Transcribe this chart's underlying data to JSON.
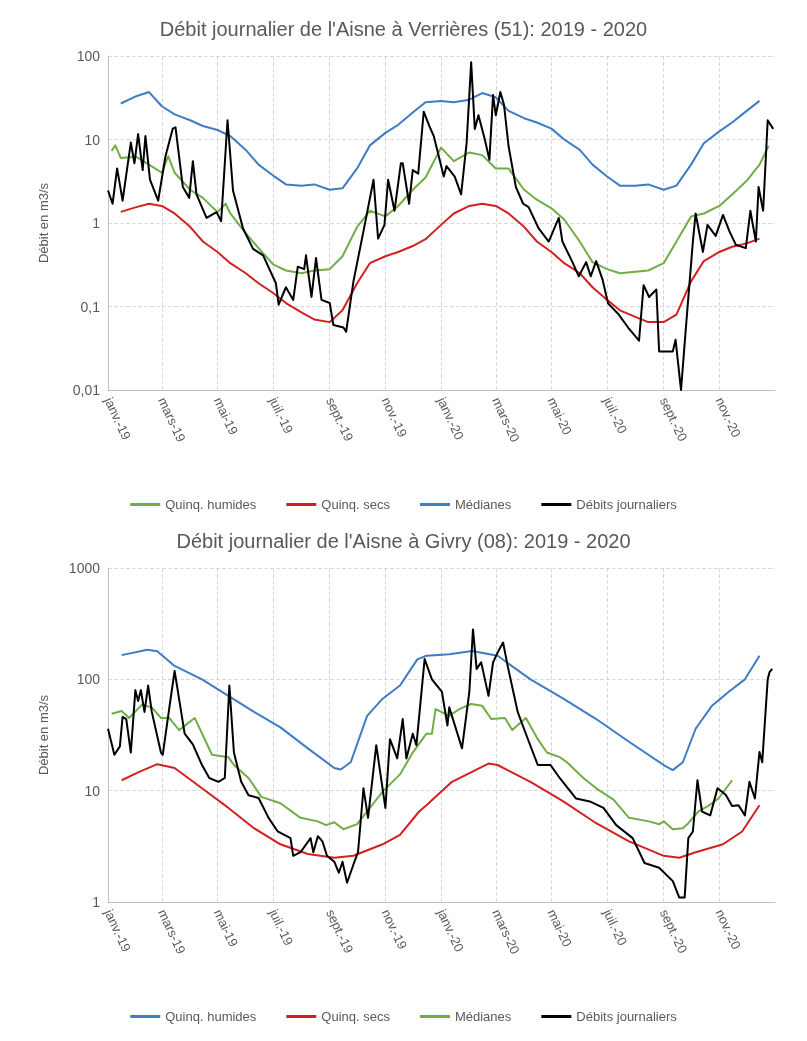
{
  "chart_data": [
    {
      "type": "line",
      "title": "Débit journalier de l'Aisne à Verrières (51): 2019 - 2020",
      "ylabel": "Débit en m3/s",
      "log": "y",
      "grid": true,
      "legend": "bottom",
      "marker": "none",
      "xlim": [
        "2019-01-01",
        "2021-01-01"
      ],
      "xticks": [
        {
          "value": "2019-01-01",
          "label": "janv.-19"
        },
        {
          "value": "2019-03-01",
          "label": "mars-19"
        },
        {
          "value": "2019-05-01",
          "label": "mai-19"
        },
        {
          "value": "2019-07-01",
          "label": "juil.-19"
        },
        {
          "value": "2019-09-01",
          "label": "sept.-19"
        },
        {
          "value": "2019-11-01",
          "label": "nov.-19"
        },
        {
          "value": "2020-01-01",
          "label": "janv.-20"
        },
        {
          "value": "2020-03-01",
          "label": "mars-20"
        },
        {
          "value": "2020-05-01",
          "label": "mai-20"
        },
        {
          "value": "2020-07-01",
          "label": "juil.-20"
        },
        {
          "value": "2020-09-01",
          "label": "sept.-20"
        },
        {
          "value": "2020-11-01",
          "label": "nov.-20"
        }
      ],
      "ylim": [
        0.01,
        100
      ],
      "yticks": [
        {
          "value": 0.01,
          "label": "0,01"
        },
        {
          "value": 0.1,
          "label": "0,1"
        },
        1,
        10,
        100
      ],
      "series": [
        {
          "name": "Quinq. humides",
          "color": "#70ad47",
          "x": [
            "2019-01-05",
            "2019-01-09",
            "2019-01-15",
            "2019-02-01",
            "2019-02-15",
            "2019-03-01",
            "2019-03-08",
            "2019-03-15",
            "2019-04-01",
            "2019-04-15",
            "2019-05-01",
            "2019-05-10",
            "2019-05-15",
            "2019-06-01",
            "2019-06-15",
            "2019-07-01",
            "2019-07-15",
            "2019-08-01",
            "2019-08-15",
            "2019-09-01",
            "2019-09-15",
            "2019-10-01",
            "2019-10-15",
            "2019-11-01",
            "2019-11-15",
            "2019-12-01",
            "2019-12-15",
            "2020-01-01",
            "2020-01-15",
            "2020-02-01",
            "2020-02-15",
            "2020-03-01",
            "2020-03-15",
            "2020-04-01",
            "2020-04-15",
            "2020-05-01",
            "2020-05-15",
            "2020-06-01",
            "2020-06-15",
            "2020-07-01",
            "2020-07-15",
            "2020-08-01",
            "2020-08-15",
            "2020-09-01",
            "2020-09-15",
            "2020-10-01",
            "2020-10-15",
            "2020-11-01",
            "2020-11-15",
            "2020-12-01",
            "2020-12-15",
            "2020-12-25"
          ],
          "values": [
            7.3,
            8.5,
            6,
            6.2,
            5,
            4,
            6.3,
            4,
            2.5,
            2,
            1.35,
            1.7,
            1.3,
            0.75,
            0.5,
            0.32,
            0.27,
            0.25,
            0.27,
            0.28,
            0.4,
            0.9,
            1.4,
            1.2,
            1.6,
            2.5,
            3.5,
            8,
            5.5,
            7,
            6.5,
            4.5,
            4.5,
            2.5,
            1.9,
            1.5,
            1.1,
            0.6,
            0.34,
            0.28,
            0.25,
            0.26,
            0.27,
            0.33,
            0.6,
            1.2,
            1.3,
            1.6,
            2.2,
            3.2,
            5,
            8.4
          ]
        },
        {
          "name": "Quinq. secs",
          "color": "#d42020",
          "x": [
            "2019-01-15",
            "2019-02-01",
            "2019-02-15",
            "2019-03-01",
            "2019-03-15",
            "2019-04-01",
            "2019-04-15",
            "2019-05-01",
            "2019-05-15",
            "2019-06-01",
            "2019-06-15",
            "2019-07-01",
            "2019-07-15",
            "2019-08-01",
            "2019-08-15",
            "2019-09-01",
            "2019-09-15",
            "2019-10-01",
            "2019-10-15",
            "2019-11-01",
            "2019-11-15",
            "2019-12-01",
            "2019-12-15",
            "2020-01-01",
            "2020-01-15",
            "2020-02-01",
            "2020-02-15",
            "2020-03-01",
            "2020-03-15",
            "2020-04-01",
            "2020-04-15",
            "2020-05-01",
            "2020-05-15",
            "2020-06-01",
            "2020-06-15",
            "2020-07-01",
            "2020-07-15",
            "2020-08-01",
            "2020-08-15",
            "2020-09-01",
            "2020-09-15",
            "2020-10-01",
            "2020-10-15",
            "2020-11-01",
            "2020-11-15",
            "2020-12-01",
            "2020-12-15"
          ],
          "values": [
            1.36,
            1.55,
            1.7,
            1.6,
            1.3,
            0.9,
            0.6,
            0.45,
            0.33,
            0.25,
            0.19,
            0.145,
            0.11,
            0.085,
            0.07,
            0.065,
            0.09,
            0.19,
            0.33,
            0.4,
            0.45,
            0.53,
            0.64,
            0.95,
            1.3,
            1.6,
            1.7,
            1.6,
            1.3,
            0.9,
            0.6,
            0.45,
            0.33,
            0.25,
            0.17,
            0.12,
            0.09,
            0.075,
            0.065,
            0.065,
            0.08,
            0.2,
            0.35,
            0.45,
            0.52,
            0.57,
            0.65
          ]
        },
        {
          "name": "Médianes",
          "color": "#3e7cc4",
          "x": [
            "2019-01-15",
            "2019-02-01",
            "2019-02-15",
            "2019-03-01",
            "2019-03-15",
            "2019-04-01",
            "2019-04-15",
            "2019-05-01",
            "2019-05-15",
            "2019-06-01",
            "2019-06-15",
            "2019-07-01",
            "2019-07-15",
            "2019-08-01",
            "2019-08-15",
            "2019-09-01",
            "2019-09-15",
            "2019-10-01",
            "2019-10-15",
            "2019-11-01",
            "2019-11-15",
            "2019-12-01",
            "2019-12-15",
            "2020-01-01",
            "2020-01-15",
            "2020-02-01",
            "2020-02-15",
            "2020-03-01",
            "2020-03-15",
            "2020-04-01",
            "2020-04-15",
            "2020-05-01",
            "2020-05-15",
            "2020-06-01",
            "2020-06-15",
            "2020-07-01",
            "2020-07-15",
            "2020-08-01",
            "2020-08-15",
            "2020-09-01",
            "2020-09-15",
            "2020-10-01",
            "2020-10-15",
            "2020-11-01",
            "2020-11-15",
            "2020-12-01",
            "2020-12-15"
          ],
          "values": [
            27,
            33,
            37,
            25,
            20,
            17,
            14.5,
            13,
            11,
            7.5,
            5,
            3.7,
            2.9,
            2.8,
            2.9,
            2.5,
            2.6,
            4.5,
            8.5,
            12,
            15,
            21,
            28,
            29,
            28,
            30,
            36,
            32,
            22,
            18,
            16,
            13.5,
            10,
            7.5,
            5,
            3.6,
            2.8,
            2.8,
            2.9,
            2.5,
            2.8,
            5,
            9,
            12.5,
            16,
            22,
            29
          ]
        },
        {
          "name": "Débits journaliers",
          "color": "#000000",
          "x": [
            "2019-01-01",
            "2019-01-06",
            "2019-01-11",
            "2019-01-17",
            "2019-01-26",
            "2019-01-30",
            "2019-02-03",
            "2019-02-08",
            "2019-02-11",
            "2019-02-16",
            "2019-02-25",
            "2019-03-05",
            "2019-03-13",
            "2019-03-16",
            "2019-03-24",
            "2019-03-31",
            "2019-04-04",
            "2019-04-08",
            "2019-04-19",
            "2019-04-30",
            "2019-05-05",
            "2019-05-12",
            "2019-05-18",
            "2019-05-29",
            "2019-06-09",
            "2019-06-20",
            "2019-07-04",
            "2019-07-07",
            "2019-07-15",
            "2019-07-23",
            "2019-07-28",
            "2019-08-04",
            "2019-08-06",
            "2019-08-12",
            "2019-08-17",
            "2019-08-23",
            "2019-09-01",
            "2019-09-05",
            "2019-09-16",
            "2019-09-19",
            "2019-09-27",
            "2019-10-08",
            "2019-10-19",
            "2019-10-24",
            "2019-10-31",
            "2019-11-04",
            "2019-11-11",
            "2019-11-18",
            "2019-11-20",
            "2019-11-27",
            "2019-12-01",
            "2019-12-07",
            "2019-12-13",
            "2019-12-19",
            "2019-12-24",
            "2020-01-04",
            "2020-01-07",
            "2020-01-16",
            "2020-01-23",
            "2020-01-29",
            "2020-02-03",
            "2020-02-07",
            "2020-02-11",
            "2020-02-18",
            "2020-02-23",
            "2020-02-27",
            "2020-03-01",
            "2020-03-06",
            "2020-03-10",
            "2020-03-15",
            "2020-03-23",
            "2020-03-31",
            "2020-04-06",
            "2020-04-17",
            "2020-04-28",
            "2020-05-09",
            "2020-05-13",
            "2020-05-24",
            "2020-05-31",
            "2020-06-08",
            "2020-06-13",
            "2020-06-19",
            "2020-06-26",
            "2020-07-02",
            "2020-07-13",
            "2020-07-24",
            "2020-08-05",
            "2020-08-10",
            "2020-08-16",
            "2020-08-24",
            "2020-08-27",
            "2020-09-11",
            "2020-09-14",
            "2020-09-20",
            "2020-09-25",
            "2020-10-03",
            "2020-10-06",
            "2020-10-14",
            "2020-10-19",
            "2020-10-28",
            "2020-11-05",
            "2020-11-12",
            "2020-11-19",
            "2020-11-30",
            "2020-12-05",
            "2020-12-11",
            "2020-12-14",
            "2020-12-19",
            "2020-12-24",
            "2020-12-30"
          ],
          "values": [
            2.45,
            1.7,
            4.5,
            1.85,
            9.2,
            5.2,
            11.6,
            4.3,
            11,
            3.3,
            1.85,
            6.3,
            13.5,
            14,
            2.7,
            2,
            5.5,
            2.2,
            1.15,
            1.35,
            1.05,
            17,
            2.45,
            0.86,
            0.49,
            0.41,
            0.19,
            0.105,
            0.17,
            0.12,
            0.3,
            0.28,
            0.41,
            0.13,
            0.38,
            0.12,
            0.11,
            0.06,
            0.056,
            0.05,
            0.2,
            0.8,
            3.3,
            0.65,
            0.95,
            3.3,
            1.4,
            5.2,
            5.2,
            1.7,
            4.3,
            3.9,
            21.5,
            14.7,
            11,
            3.6,
            4.8,
            3.6,
            2.2,
            9,
            84,
            13.4,
            19.5,
            10,
            5.7,
            34,
            19.5,
            37,
            26,
            8.3,
            2.7,
            1.7,
            1.55,
            0.86,
            0.6,
            1.15,
            0.6,
            0.34,
            0.23,
            0.34,
            0.23,
            0.35,
            0.21,
            0.109,
            0.082,
            0.056,
            0.039,
            0.18,
            0.13,
            0.16,
            0.029,
            0.029,
            0.04,
            0.01,
            0.05,
            0.6,
            1.3,
            0.45,
            0.95,
            0.7,
            1.25,
            0.8,
            0.55,
            0.5,
            1.4,
            0.6,
            2.7,
            1.4,
            17,
            13.4
          ]
        }
      ]
    },
    {
      "type": "line",
      "title": "Débit journalier de l'Aisne à Givry (08): 2019 - 2020",
      "ylabel": "Débit en m3/s",
      "log": "y",
      "grid": true,
      "legend": "bottom",
      "marker": "none",
      "xlim": [
        "2019-01-01",
        "2021-01-01"
      ],
      "xticks": [
        {
          "value": "2019-01-01",
          "label": "janv.-19"
        },
        {
          "value": "2019-03-01",
          "label": "mars-19"
        },
        {
          "value": "2019-05-01",
          "label": "mai-19"
        },
        {
          "value": "2019-07-01",
          "label": "juil.-19"
        },
        {
          "value": "2019-09-01",
          "label": "sept.-19"
        },
        {
          "value": "2019-11-01",
          "label": "nov.-19"
        },
        {
          "value": "2020-01-01",
          "label": "janv.-20"
        },
        {
          "value": "2020-03-01",
          "label": "mars-20"
        },
        {
          "value": "2020-05-01",
          "label": "mai-20"
        },
        {
          "value": "2020-07-01",
          "label": "juil.-20"
        },
        {
          "value": "2020-09-01",
          "label": "sept.-20"
        },
        {
          "value": "2020-11-01",
          "label": "nov.-20"
        }
      ],
      "ylim": [
        1,
        1000
      ],
      "yticks": [
        1,
        10,
        100,
        1000
      ],
      "series": [
        {
          "name": "Quinq. humides",
          "color": "#3e7cc4",
          "x": [
            "2019-01-16",
            "2019-02-13",
            "2019-02-24",
            "2019-03-15",
            "2019-04-14",
            "2019-05-13",
            "2019-06-10",
            "2019-07-09",
            "2019-08-08",
            "2019-09-06",
            "2019-09-13",
            "2019-09-24",
            "2019-10-12",
            "2019-10-29",
            "2019-11-17",
            "2019-12-06",
            "2019-12-16",
            "2020-01-10",
            "2020-02-04",
            "2020-03-03",
            "2020-04-08",
            "2020-05-14",
            "2020-06-19",
            "2020-07-25",
            "2020-09-01",
            "2020-09-11",
            "2020-09-22",
            "2020-10-06",
            "2020-10-24",
            "2020-11-11",
            "2020-11-29",
            "2020-12-15"
          ],
          "values": [
            165,
            184,
            179,
            132,
            100,
            71,
            51,
            37,
            24,
            16,
            15.5,
            18,
            47,
            67,
            88,
            151,
            163,
            168,
            180,
            163,
            100,
            67,
            44,
            27.5,
            17,
            15.3,
            18,
            36,
            58,
            77,
            100,
            163
          ]
        },
        {
          "name": "Quinq. secs",
          "color": "#d42020",
          "x": [
            "2019-01-16",
            "2019-02-03",
            "2019-02-24",
            "2019-03-15",
            "2019-04-14",
            "2019-05-13",
            "2019-06-10",
            "2019-07-09",
            "2019-08-08",
            "2019-09-06",
            "2019-09-27",
            "2019-10-29",
            "2019-11-17",
            "2019-12-08",
            "2019-12-16",
            "2020-01-13",
            "2020-02-22",
            "2020-03-03",
            "2020-04-08",
            "2020-05-14",
            "2020-06-19",
            "2020-07-25",
            "2020-09-01",
            "2020-09-18",
            "2020-10-06",
            "2020-11-05",
            "2020-11-26",
            "2020-12-15"
          ],
          "values": [
            12.4,
            14.6,
            17.3,
            16,
            10.5,
            7,
            4.6,
            3.3,
            2.7,
            2.5,
            2.6,
            3.3,
            4,
            6.5,
            7.4,
            12,
            17.5,
            17,
            12,
            8,
            5.1,
            3.5,
            2.6,
            2.5,
            2.8,
            3.3,
            4.3,
            7.4
          ]
        },
        {
          "name": "Médianes",
          "color": "#70ad47",
          "x": [
            "2019-01-05",
            "2019-01-16",
            "2019-01-24",
            "2019-02-07",
            "2019-02-18",
            "2019-02-28",
            "2019-03-09",
            "2019-03-20",
            "2019-04-06",
            "2019-04-25",
            "2019-05-13",
            "2019-05-19",
            "2019-06-04",
            "2019-06-18",
            "2019-07-09",
            "2019-07-31",
            "2019-08-19",
            "2019-08-28",
            "2019-09-06",
            "2019-09-16",
            "2019-10-01",
            "2019-10-12",
            "2019-10-29",
            "2019-11-17",
            "2019-12-01",
            "2019-12-16",
            "2019-12-22",
            "2019-12-26",
            "2020-01-10",
            "2020-01-21",
            "2020-02-03",
            "2020-02-15",
            "2020-02-25",
            "2020-03-11",
            "2020-03-19",
            "2020-04-03",
            "2020-04-16",
            "2020-04-26",
            "2020-05-10",
            "2020-05-18",
            "2020-06-05",
            "2020-06-19",
            "2020-07-08",
            "2020-07-25",
            "2020-08-16",
            "2020-08-27",
            "2020-09-01",
            "2020-09-11",
            "2020-09-22",
            "2020-09-28",
            "2020-10-09",
            "2020-10-20",
            "2020-10-31",
            "2020-11-15"
          ],
          "values": [
            49,
            52,
            45,
            59,
            56,
            45,
            45,
            35,
            45,
            21,
            20,
            17,
            13,
            8.8,
            7.7,
            5.7,
            5.3,
            4.9,
            5.2,
            4.5,
            5,
            6.5,
            9.8,
            14,
            22,
            32.5,
            32.5,
            54,
            47,
            54,
            60,
            58,
            44,
            45,
            35,
            45,
            29,
            22,
            20,
            18,
            13,
            10.5,
            8.3,
            5.7,
            5.3,
            5,
            5.3,
            4.5,
            4.6,
            5.1,
            6.5,
            7.3,
            8.5,
            12.4
          ]
        },
        {
          "name": "Débits journaliers",
          "color": "#000000",
          "x": [
            "2019-01-01",
            "2019-01-08",
            "2019-01-14",
            "2019-01-17",
            "2019-01-21",
            "2019-01-26",
            "2019-01-31",
            "2019-02-03",
            "2019-02-06",
            "2019-02-10",
            "2019-02-14",
            "2019-02-18",
            "2019-02-28",
            "2019-03-02",
            "2019-03-09",
            "2019-03-15",
            "2019-03-26",
            "2019-04-04",
            "2019-04-14",
            "2019-04-22",
            "2019-05-02",
            "2019-05-09",
            "2019-05-14",
            "2019-05-19",
            "2019-05-27",
            "2019-06-04",
            "2019-06-15",
            "2019-06-26",
            "2019-07-06",
            "2019-07-20",
            "2019-07-23",
            "2019-07-31",
            "2019-08-11",
            "2019-08-14",
            "2019-08-19",
            "2019-08-24",
            "2019-08-29",
            "2019-09-06",
            "2019-09-11",
            "2019-09-15",
            "2019-09-20",
            "2019-09-27",
            "2019-10-02",
            "2019-10-08",
            "2019-10-13",
            "2019-10-22",
            "2019-11-01",
            "2019-11-06",
            "2019-11-14",
            "2019-11-20",
            "2019-11-24",
            "2019-12-01",
            "2019-12-05",
            "2019-12-14",
            "2019-12-22",
            "2020-01-02",
            "2020-01-08",
            "2020-01-10",
            "2020-01-24",
            "2020-02-01",
            "2020-02-05",
            "2020-02-09",
            "2020-02-14",
            "2020-02-22",
            "2020-02-27",
            "2020-03-03",
            "2020-03-09",
            "2020-03-14",
            "2020-03-25",
            "2020-04-02",
            "2020-04-16",
            "2020-04-30",
            "2020-05-10",
            "2020-05-28",
            "2020-06-12",
            "2020-06-27",
            "2020-07-11",
            "2020-07-29",
            "2020-08-11",
            "2020-08-27",
            "2020-09-11",
            "2020-09-18",
            "2020-09-24",
            "2020-09-28",
            "2020-10-03",
            "2020-10-08",
            "2020-10-13",
            "2020-10-22",
            "2020-10-30",
            "2020-11-08",
            "2020-11-15",
            "2020-11-22",
            "2020-11-29",
            "2020-12-04",
            "2020-12-10",
            "2020-12-15",
            "2020-12-18",
            "2020-12-24",
            "2020-12-26",
            "2020-12-29"
          ],
          "values": [
            36,
            21,
            25,
            46,
            44,
            22,
            80,
            64,
            80,
            51,
            88,
            51,
            22,
            21,
            54,
            119,
            32.5,
            26,
            17,
            13,
            12,
            13,
            88,
            22,
            12,
            9.1,
            8.6,
            5.7,
            4.3,
            3.75,
            2.6,
            2.8,
            3.75,
            2.8,
            3.9,
            3.5,
            2.6,
            2.3,
            1.83,
            2.3,
            1.49,
            2.17,
            2.8,
            10.5,
            5.7,
            25.6,
            7,
            29,
            19.5,
            44,
            19.5,
            32.5,
            25.6,
            152,
            100,
            77,
            38.5,
            56,
            24,
            77,
            281,
            124,
            142,
            71,
            142,
            174,
            214,
            132,
            51,
            34,
            17,
            17,
            13,
            8.5,
            8,
            7,
            4.9,
            3.75,
            2.24,
            2.03,
            1.54,
            1.1,
            1.1,
            3.75,
            4.3,
            12.4,
            6.5,
            6,
            10.5,
            9.2,
            7.3,
            7.4,
            6,
            12,
            8.5,
            22.3,
            18,
            100,
            116,
            124
          ]
        }
      ]
    }
  ]
}
